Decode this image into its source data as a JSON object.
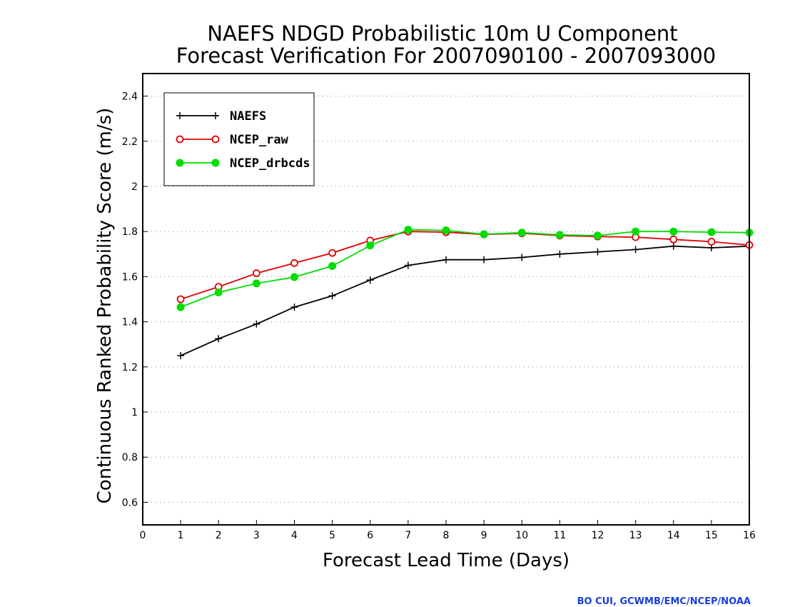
{
  "chart_data": {
    "type": "line",
    "title": "NAEFS NDGD Probabilistic 10m U Component",
    "subtitle": "Forecast Verification For 2007090100 - 2007093000",
    "xlabel": "Forecast Lead Time (Days)",
    "ylabel": "Continuous Ranked Probability Score (m/s)",
    "xlim": [
      0,
      16
    ],
    "ylim": [
      0.5,
      2.5
    ],
    "xticks": [
      "0",
      "1",
      "2",
      "3",
      "4",
      "5",
      "6",
      "7",
      "8",
      "9",
      "10",
      "11",
      "12",
      "13",
      "14",
      "15",
      "16"
    ],
    "yticks": [
      "0.6",
      "0.8",
      "1",
      "1.2",
      "1.4",
      "1.6",
      "1.8",
      "2",
      "2.2",
      "2.4"
    ],
    "grid": "horizontal dotted",
    "legend": "top-left",
    "x": [
      1,
      2,
      3,
      4,
      5,
      6,
      7,
      8,
      9,
      10,
      11,
      12,
      13,
      14,
      15,
      16
    ],
    "series": [
      {
        "name": "NAEFS",
        "color": "#000000",
        "marker": "plus",
        "values": [
          1.25,
          1.325,
          1.39,
          1.465,
          1.515,
          1.585,
          1.65,
          1.675,
          1.675,
          1.685,
          1.7,
          1.71,
          1.72,
          1.735,
          1.728,
          1.735
        ]
      },
      {
        "name": "NCEP_raw",
        "color": "#e00000",
        "marker": "open-circle",
        "values": [
          1.5,
          1.555,
          1.615,
          1.66,
          1.705,
          1.76,
          1.8,
          1.797,
          1.787,
          1.792,
          1.782,
          1.778,
          1.775,
          1.765,
          1.755,
          1.74
        ]
      },
      {
        "name": "NCEP_drbcds",
        "color": "#00dd00",
        "marker": "filled-circle",
        "values": [
          1.465,
          1.53,
          1.57,
          1.598,
          1.647,
          1.738,
          1.808,
          1.805,
          1.788,
          1.795,
          1.785,
          1.782,
          1.8,
          1.8,
          1.797,
          1.795
        ]
      }
    ]
  },
  "credit": {
    "text": "BO CUI, GCWMB/EMC/NCEP/NOAA",
    "color": "#1a3fe0"
  }
}
